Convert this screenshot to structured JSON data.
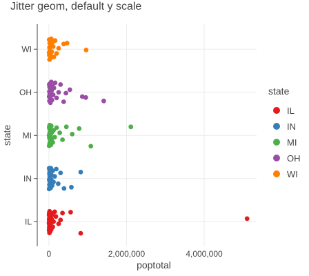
{
  "chart_data": {
    "type": "scatter",
    "title": "Jitter geom, default y scale",
    "xlabel": "poptotal",
    "ylabel": "state",
    "xlim": [
      -300000,
      5350000
    ],
    "x_ticks": [
      0,
      2000000,
      4000000
    ],
    "x_tick_labels": [
      "0",
      "2,000,000",
      "4,000,000"
    ],
    "categories": [
      "IL",
      "IN",
      "MI",
      "OH",
      "WI"
    ],
    "grid": true,
    "legend": {
      "title": "state",
      "position": "right",
      "entries": [
        "IL",
        "IN",
        "MI",
        "OH",
        "WI"
      ]
    },
    "series": [
      {
        "name": "IL",
        "color": "#e41a1c",
        "points": [
          [
            5105067,
            0.07
          ],
          [
            820000,
            -0.27
          ],
          [
            560000,
            0.22
          ],
          [
            350000,
            0.2
          ],
          [
            300000,
            0.04
          ],
          [
            250000,
            -0.05
          ],
          [
            180000,
            0.12
          ],
          [
            150000,
            0.23
          ],
          [
            120000,
            0.0
          ],
          [
            100000,
            -0.12
          ],
          [
            90000,
            0.16
          ],
          [
            70000,
            0.06
          ],
          [
            60000,
            -0.18
          ],
          [
            50000,
            0.2
          ],
          [
            45000,
            -0.04
          ],
          [
            40000,
            0.12
          ],
          [
            35000,
            -0.22
          ],
          [
            30000,
            0.02
          ],
          [
            28000,
            0.18
          ],
          [
            25000,
            -0.1
          ],
          [
            22000,
            0.08
          ],
          [
            20000,
            -0.16
          ],
          [
            18000,
            0.24
          ],
          [
            16000,
            -0.02
          ],
          [
            15000,
            0.1
          ],
          [
            14000,
            -0.26
          ],
          [
            12000,
            0.14
          ],
          [
            11000,
            -0.07
          ],
          [
            10000,
            0.03
          ],
          [
            9000,
            0.2
          ],
          [
            8000,
            -0.14
          ],
          [
            7000,
            0.06
          ],
          [
            6000,
            -0.2
          ],
          [
            5000,
            0.16
          ],
          [
            4500,
            -0.03
          ]
        ]
      },
      {
        "name": "IN",
        "color": "#377eb8",
        "points": [
          [
            820000,
            0.15
          ],
          [
            580000,
            -0.2
          ],
          [
            390000,
            -0.23
          ],
          [
            300000,
            0.13
          ],
          [
            240000,
            -0.12
          ],
          [
            190000,
            0.22
          ],
          [
            150000,
            0.05
          ],
          [
            120000,
            -0.08
          ],
          [
            100000,
            0.18
          ],
          [
            85000,
            -0.16
          ],
          [
            70000,
            0.08
          ],
          [
            60000,
            -0.03
          ],
          [
            50000,
            0.24
          ],
          [
            45000,
            -0.22
          ],
          [
            40000,
            0.1
          ],
          [
            35000,
            -0.1
          ],
          [
            30000,
            0.02
          ],
          [
            25000,
            0.16
          ],
          [
            22000,
            -0.18
          ],
          [
            20000,
            0.06
          ],
          [
            18000,
            -0.06
          ],
          [
            16000,
            0.2
          ],
          [
            14000,
            -0.14
          ],
          [
            12000,
            0.12
          ],
          [
            10000,
            -0.02
          ],
          [
            8000,
            0.24
          ],
          [
            6000,
            -0.24
          ]
        ]
      },
      {
        "name": "MI",
        "color": "#4daf4a",
        "points": [
          [
            2111687,
            0.2
          ],
          [
            1080000,
            -0.25
          ],
          [
            780000,
            0.16
          ],
          [
            600000,
            0.03
          ],
          [
            450000,
            0.2
          ],
          [
            350000,
            -0.1
          ],
          [
            280000,
            0.06
          ],
          [
            200000,
            0.18
          ],
          [
            150000,
            -0.04
          ],
          [
            120000,
            0.12
          ],
          [
            100000,
            -0.16
          ],
          [
            80000,
            0.08
          ],
          [
            70000,
            -0.08
          ],
          [
            60000,
            0.22
          ],
          [
            50000,
            -0.22
          ],
          [
            45000,
            0.02
          ],
          [
            40000,
            0.14
          ],
          [
            35000,
            -0.12
          ],
          [
            30000,
            0.1
          ],
          [
            25000,
            -0.02
          ],
          [
            22000,
            0.24
          ],
          [
            20000,
            -0.18
          ],
          [
            18000,
            0.05
          ],
          [
            15000,
            0.16
          ],
          [
            12000,
            -0.06
          ],
          [
            10000,
            0.2
          ],
          [
            8000,
            -0.24
          ],
          [
            6000,
            0.0
          ]
        ]
      },
      {
        "name": "OH",
        "color": "#984ea3",
        "points": [
          [
            1412140,
            -0.2
          ],
          [
            950000,
            -0.12
          ],
          [
            860000,
            -0.1
          ],
          [
            540000,
            0.06
          ],
          [
            440000,
            -0.02
          ],
          [
            380000,
            -0.22
          ],
          [
            300000,
            0.18
          ],
          [
            250000,
            0.0
          ],
          [
            200000,
            -0.13
          ],
          [
            160000,
            0.22
          ],
          [
            130000,
            0.1
          ],
          [
            110000,
            -0.06
          ],
          [
            95000,
            0.14
          ],
          [
            80000,
            -0.18
          ],
          [
            70000,
            0.04
          ],
          [
            60000,
            0.24
          ],
          [
            50000,
            -0.08
          ],
          [
            45000,
            0.16
          ],
          [
            40000,
            -0.24
          ],
          [
            35000,
            0.08
          ],
          [
            30000,
            -0.14
          ],
          [
            25000,
            0.2
          ],
          [
            22000,
            -0.04
          ],
          [
            18000,
            0.12
          ],
          [
            15000,
            -0.2
          ],
          [
            12000,
            0.02
          ],
          [
            9000,
            0.18
          ],
          [
            7000,
            -0.1
          ]
        ]
      },
      {
        "name": "WI",
        "color": "#ff7f00",
        "points": [
          [
            959275,
            -0.02
          ],
          [
            470000,
            0.14
          ],
          [
            380000,
            0.12
          ],
          [
            250000,
            0.02
          ],
          [
            200000,
            -0.1
          ],
          [
            160000,
            0.2
          ],
          [
            130000,
            -0.18
          ],
          [
            110000,
            0.06
          ],
          [
            90000,
            0.16
          ],
          [
            75000,
            -0.06
          ],
          [
            60000,
            0.24
          ],
          [
            50000,
            -0.2
          ],
          [
            42000,
            0.1
          ],
          [
            36000,
            -0.12
          ],
          [
            30000,
            0.2
          ],
          [
            25000,
            -0.02
          ],
          [
            20000,
            0.14
          ],
          [
            17000,
            -0.24
          ],
          [
            14000,
            0.04
          ],
          [
            11000,
            -0.14
          ],
          [
            8000,
            0.22
          ],
          [
            6000,
            -0.08
          ]
        ]
      }
    ]
  }
}
